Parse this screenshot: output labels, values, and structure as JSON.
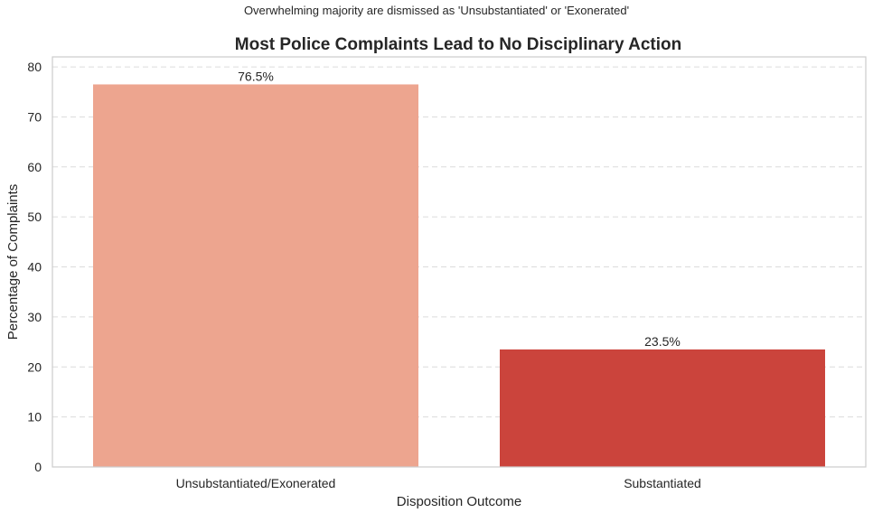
{
  "chart_data": {
    "type": "bar",
    "suptitle": "Overwhelming majority are dismissed as 'Unsubstantiated' or 'Exonerated'",
    "title": "Most Police Complaints Lead to No Disciplinary Action",
    "xlabel": "Disposition Outcome",
    "ylabel": "Percentage of Complaints",
    "categories": [
      "Unsubstantiated/Exonerated",
      "Substantiated"
    ],
    "values": [
      76.5,
      23.5
    ],
    "value_labels": [
      "76.5%",
      "23.5%"
    ],
    "colors": [
      "#eda58f",
      "#cb443c"
    ],
    "ylim": [
      0,
      82
    ],
    "yticks": [
      0,
      10,
      20,
      30,
      40,
      50,
      60,
      70,
      80
    ],
    "grid": "y-dashed",
    "legend": "none"
  }
}
